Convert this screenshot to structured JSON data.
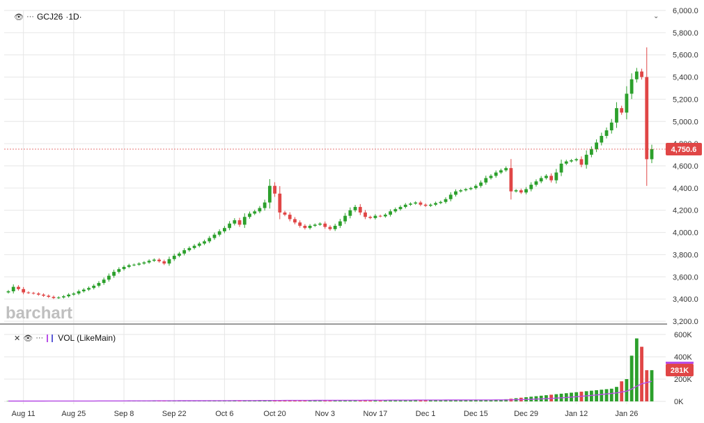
{
  "legend_main": {
    "symbol": "GCJ26",
    "interval": "1D",
    "eye_icon": "eye-icon",
    "more_icon": "ellipsis-icon"
  },
  "legend_vol": {
    "close_icon": "close-icon",
    "eye_icon": "eye-icon",
    "more_icon": "ellipsis-icon",
    "label": "VOL (LikeMain)"
  },
  "watermark": "barchart",
  "colors": {
    "up": "#2ca02c",
    "down": "#e04646",
    "ma": "#b84de8",
    "price_tag": "#e04646",
    "grid": "#e6e6e6"
  },
  "chart_data": [
    {
      "type": "candlestick",
      "title": "GCJ26 1D",
      "ylim": [
        3200,
        6000
      ],
      "y_ticks": [
        "6,000.0",
        "5,800.0",
        "5,600.0",
        "5,400.0",
        "5,200.0",
        "5,000.0",
        "4,800.0",
        "4,600.0",
        "4,400.0",
        "4,200.0",
        "4,000.0",
        "3,800.0",
        "3,600.0",
        "3,400.0",
        "3,200.0"
      ],
      "x_ticks": [
        "Aug 11",
        "Aug 25",
        "Sep 8",
        "Sep 22",
        "Oct 6",
        "Oct 20",
        "Nov 3",
        "Nov 17",
        "Dec 1",
        "Dec 15",
        "Dec 29",
        "Jan 12",
        "Jan 26"
      ],
      "last_price": "4,750.6",
      "closes": [
        3470,
        3510,
        3490,
        3460,
        3455,
        3450,
        3440,
        3430,
        3420,
        3410,
        3415,
        3425,
        3440,
        3450,
        3470,
        3485,
        3500,
        3520,
        3545,
        3575,
        3610,
        3645,
        3670,
        3690,
        3705,
        3710,
        3720,
        3730,
        3745,
        3755,
        3740,
        3720,
        3760,
        3790,
        3810,
        3840,
        3860,
        3880,
        3900,
        3920,
        3950,
        3980,
        4010,
        4040,
        4080,
        4110,
        4070,
        4140,
        4170,
        4190,
        4220,
        4270,
        4420,
        4350,
        4180,
        4160,
        4120,
        4090,
        4060,
        4040,
        4060,
        4070,
        4080,
        4050,
        4030,
        4060,
        4100,
        4150,
        4200,
        4230,
        4180,
        4140,
        4130,
        4150,
        4145,
        4160,
        4190,
        4210,
        4230,
        4250,
        4260,
        4270,
        4250,
        4240,
        4250,
        4265,
        4275,
        4300,
        4340,
        4370,
        4380,
        4390,
        4400,
        4420,
        4450,
        4490,
        4510,
        4540,
        4560,
        4580,
        4370,
        4380,
        4360,
        4390,
        4430,
        4460,
        4490,
        4510,
        4470,
        4540,
        4620,
        4640,
        4650,
        4660,
        4610,
        4700,
        4750,
        4810,
        4870,
        4920,
        4990,
        5120,
        5080,
        5250,
        5380,
        5450,
        5400,
        4660,
        4750.6
      ]
    },
    {
      "type": "bar",
      "title": "VOL (LikeMain)",
      "ylim": [
        0,
        600000
      ],
      "y_ticks": [
        "600K",
        "400K",
        "200K",
        "0K"
      ],
      "last_value": "281K",
      "moving_average": true
    }
  ]
}
